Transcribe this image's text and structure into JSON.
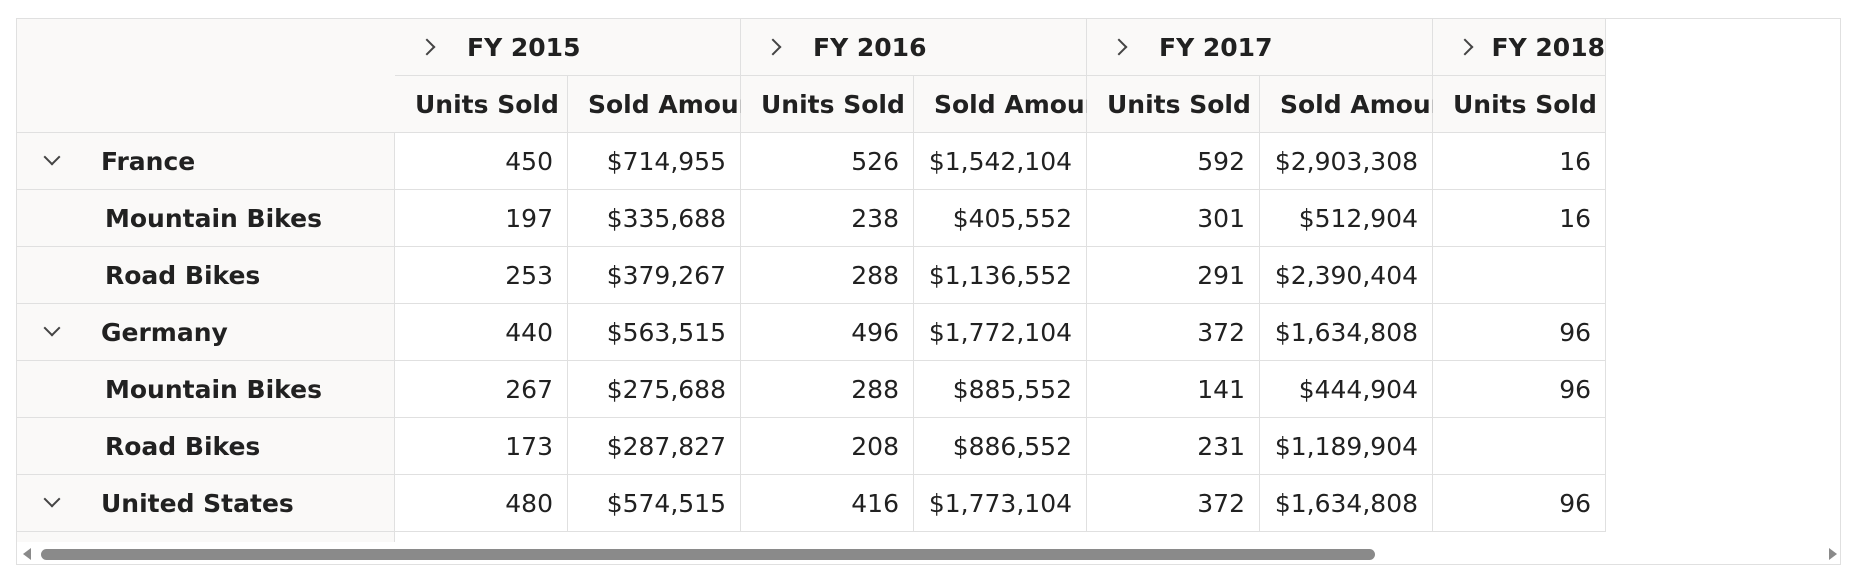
{
  "years": [
    {
      "label": "FY 2015"
    },
    {
      "label": "FY 2016"
    },
    {
      "label": "FY 2017"
    },
    {
      "label": "FY 2018"
    }
  ],
  "measures": {
    "units": "Units Sold",
    "amount": "Sold Amount"
  },
  "rows": [
    {
      "label": "France",
      "level": 0,
      "expanded": true,
      "values": [
        "450",
        "$714,955",
        "526",
        "$1,542,104",
        "592",
        "$2,903,308",
        "16"
      ]
    },
    {
      "label": "Mountain Bikes",
      "level": 1,
      "values": [
        "197",
        "$335,688",
        "238",
        "$405,552",
        "301",
        "$512,904",
        "16"
      ]
    },
    {
      "label": "Road Bikes",
      "level": 1,
      "values": [
        "253",
        "$379,267",
        "288",
        "$1,136,552",
        "291",
        "$2,390,404",
        ""
      ]
    },
    {
      "label": "Germany",
      "level": 0,
      "expanded": true,
      "values": [
        "440",
        "$563,515",
        "496",
        "$1,772,104",
        "372",
        "$1,634,808",
        "96"
      ]
    },
    {
      "label": "Mountain Bikes",
      "level": 1,
      "values": [
        "267",
        "$275,688",
        "288",
        "$885,552",
        "141",
        "$444,904",
        "96"
      ]
    },
    {
      "label": "Road Bikes",
      "level": 1,
      "values": [
        "173",
        "$287,827",
        "208",
        "$886,552",
        "231",
        "$1,189,904",
        ""
      ]
    },
    {
      "label": "United States",
      "level": 0,
      "expanded": true,
      "values": [
        "480",
        "$574,515",
        "416",
        "$1,773,104",
        "372",
        "$1,634,808",
        "96"
      ]
    }
  ],
  "colors": {
    "header_bg": "#faf9f8",
    "border": "#e0e0e0",
    "scrollbar": "#8a8a8a"
  }
}
